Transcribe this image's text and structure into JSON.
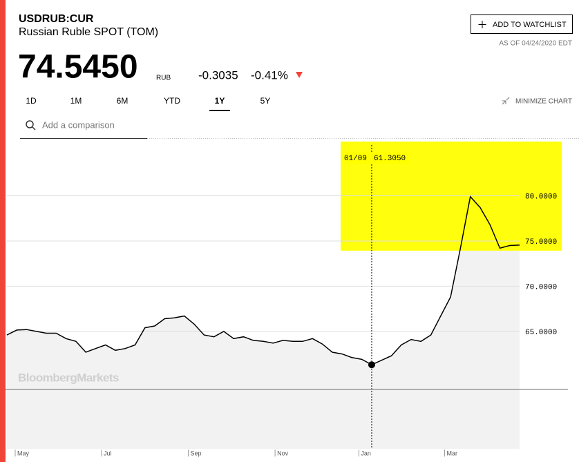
{
  "header": {
    "ticker": "USDRUB:CUR",
    "name": "Russian Ruble SPOT (TOM)",
    "price": "74.5450",
    "currency": "RUB",
    "change": "-0.3035",
    "change_pct": "-0.41%",
    "watchlist": "ADD TO WATCHLIST",
    "as_of": "AS OF 04/24/2020 EDT"
  },
  "tabs": [
    "1D",
    "1M",
    "6M",
    "YTD",
    "1Y",
    "5Y"
  ],
  "active_tab": 4,
  "minimize": "MINIMIZE CHART",
  "comparison_placeholder": "Add a comparison",
  "watermark": "BloombergMarkets",
  "chart_data": {
    "type": "line",
    "series": [
      {
        "name": "USDRUB:CUR",
        "color": "#000000",
        "values": [
          64.6,
          65.15,
          65.2,
          65.0,
          64.8,
          64.8,
          64.2,
          63.9,
          62.7,
          63.1,
          63.5,
          62.9,
          63.1,
          63.5,
          65.4,
          65.6,
          66.4,
          66.5,
          66.7,
          65.8,
          64.6,
          64.4,
          65.0,
          64.2,
          64.4,
          64.0,
          63.9,
          63.7,
          64.0,
          63.9,
          63.9,
          64.2,
          63.6,
          62.7,
          62.5,
          62.1,
          61.9,
          61.305,
          61.8,
          62.3,
          63.5,
          64.1,
          63.9,
          64.6,
          66.7,
          68.8,
          74.2,
          79.9,
          78.7,
          76.8,
          74.2,
          74.5,
          74.545
        ]
      }
    ],
    "xlim": [
      0,
      52
    ],
    "xticks": [
      {
        "value": 0.84,
        "label": "May"
      },
      {
        "value": 9.6,
        "label": "Jul"
      },
      {
        "value": 18.4,
        "label": "Sep"
      },
      {
        "value": 27.2,
        "label": "Nov"
      },
      {
        "value": 35.7,
        "label": "Jan"
      },
      {
        "value": 44.4,
        "label": "Mar"
      }
    ],
    "ylim": [
      52,
      86
    ],
    "yticks": [
      {
        "value": 65,
        "label": "65.0000"
      },
      {
        "value": 70,
        "label": "70.0000"
      },
      {
        "value": 75,
        "label": "75.0000"
      },
      {
        "value": 80,
        "label": "80.0000"
      }
    ],
    "grid": true,
    "tooltip": {
      "x": 37,
      "date": "01/09",
      "value": 61.305,
      "label": "61.3050"
    }
  }
}
